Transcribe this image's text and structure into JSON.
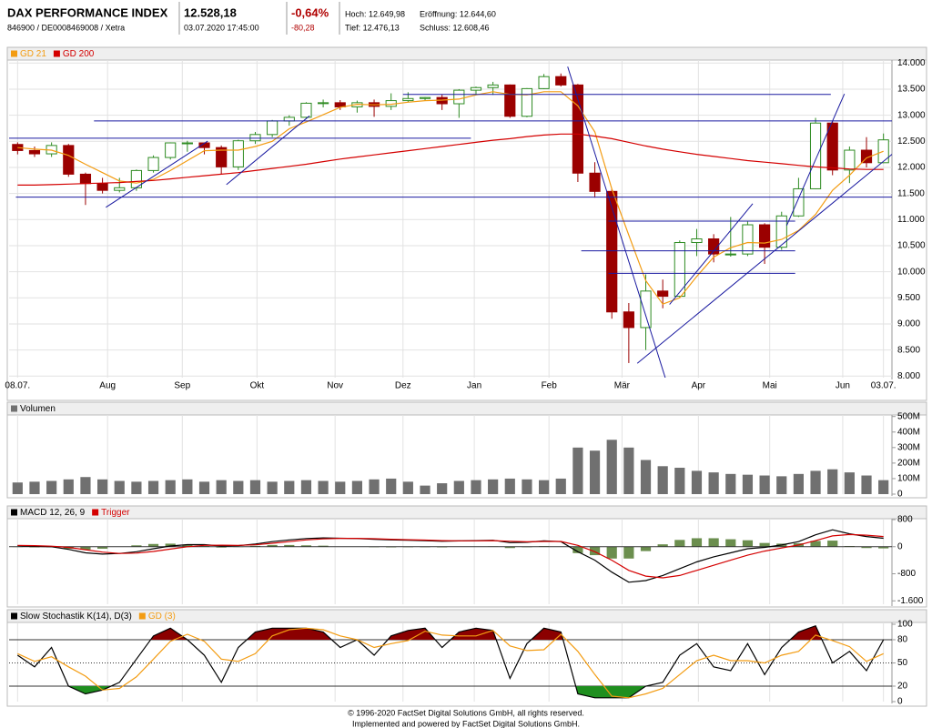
{
  "header": {
    "title": "DAX PERFORMANCE INDEX",
    "subtitle": "846900 / DE0008469008 / Xetra",
    "price": "12.528,18",
    "timestamp": "03.07.2020 17:45:00",
    "change_pct": "-0,64%",
    "change_abs": "-80,28",
    "high": "Hoch: 12.649,98",
    "open": "Eröffnung: 12.644,60",
    "low": "Tief: 12.476,13",
    "close": "Schluss: 12.608,46"
  },
  "chart_data": [
    {
      "type": "candlestick",
      "open": [
        12440,
        12323,
        12260,
        12420,
        11870,
        11690,
        11560,
        11610,
        11940,
        12190,
        12470,
        12470,
        12380,
        12010,
        12510,
        12630,
        12890,
        12960,
        13230,
        13240,
        13160,
        13240,
        13170,
        13280,
        13320,
        13340,
        13220,
        13480,
        13530,
        13580,
        12980,
        13510,
        13740,
        13580,
        11890,
        11540,
        9230,
        8930,
        9630,
        9530,
        10560,
        10630,
        10340,
        10340,
        10900,
        10470,
        11070,
        11590,
        12850,
        11950,
        12330,
        12090
      ],
      "high": [
        12480,
        12400,
        12480,
        12450,
        11900,
        11800,
        11800,
        11960,
        12230,
        12480,
        12510,
        12480,
        12420,
        12530,
        12680,
        12910,
        13000,
        13250,
        13300,
        13290,
        13280,
        13300,
        13420,
        13440,
        13350,
        13400,
        13500,
        13550,
        13640,
        13590,
        13520,
        13790,
        13800,
        13600,
        12100,
        11580,
        9400,
        9950,
        9850,
        10600,
        10820,
        10720,
        11050,
        10960,
        10930,
        11150,
        11800,
        12950,
        12880,
        12400,
        12580,
        12650
      ],
      "low": [
        12250,
        12200,
        12200,
        11820,
        11280,
        11500,
        11520,
        11550,
        11900,
        12150,
        12300,
        12250,
        11860,
        11950,
        12450,
        12580,
        12800,
        12930,
        13150,
        13100,
        13050,
        12970,
        13100,
        13250,
        13280,
        13100,
        12950,
        13400,
        13390,
        12950,
        12960,
        13500,
        13550,
        11720,
        11420,
        9100,
        8250,
        8500,
        9300,
        9500,
        10300,
        10180,
        10290,
        10300,
        10150,
        10420,
        11050,
        11580,
        11850,
        11700,
        12000,
        12080
      ],
      "close": [
        12323,
        12260,
        12420,
        11870,
        11690,
        11560,
        11610,
        11940,
        12190,
        12470,
        12470,
        12380,
        12010,
        12510,
        12630,
        12890,
        12960,
        13230,
        13240,
        13160,
        13240,
        13170,
        13280,
        13320,
        13340,
        13220,
        13480,
        13530,
        13580,
        12980,
        13510,
        13740,
        13580,
        11890,
        11540,
        9230,
        8930,
        9630,
        9530,
        10560,
        10630,
        10340,
        10340,
        10900,
        10470,
        11070,
        11590,
        12850,
        11950,
        12330,
        12090,
        12528
      ],
      "up_color": "#2e8b22",
      "down_color": "#9b0000",
      "lines": [
        {
          "name": "GD 21",
          "color": "#f39c12",
          "values": [
            12380,
            12350,
            12330,
            12230,
            12060,
            11900,
            11740,
            11700,
            11770,
            11940,
            12130,
            12320,
            12330,
            12330,
            12400,
            12500,
            12740,
            12870,
            13010,
            13150,
            13210,
            13200,
            13210,
            13250,
            13280,
            13290,
            13310,
            13390,
            13450,
            13400,
            13390,
            13450,
            13450,
            13180,
            12680,
            11590,
            10700,
            9830,
            9380,
            9500,
            9910,
            10280,
            10460,
            10560,
            10550,
            10620,
            10790,
            11100,
            11560,
            11850,
            12180,
            12310
          ]
        },
        {
          "name": "GD 200",
          "color": "#d40000",
          "values": [
            11660,
            11660,
            11670,
            11680,
            11690,
            11700,
            11710,
            11730,
            11750,
            11780,
            11810,
            11840,
            11870,
            11900,
            11940,
            11980,
            12020,
            12060,
            12110,
            12160,
            12200,
            12240,
            12280,
            12320,
            12360,
            12400,
            12440,
            12480,
            12520,
            12550,
            12590,
            12620,
            12640,
            12640,
            12600,
            12550,
            12480,
            12410,
            12350,
            12300,
            12250,
            12210,
            12170,
            12130,
            12100,
            12070,
            12040,
            12010,
            11990,
            11970,
            11960,
            11960
          ]
        }
      ],
      "trendline_color": "#1a1aa0",
      "trendlines": [
        {
          "x": [
            22.7,
            47.9
          ],
          "y": [
            13400,
            13400
          ]
        },
        {
          "x": [
            4.5,
            51.8
          ],
          "y": [
            12890,
            12890
          ]
        },
        {
          "x": [
            -0.5,
            26.7
          ],
          "y": [
            12560,
            12560
          ]
        },
        {
          "x": [
            -0.1,
            51.5
          ],
          "y": [
            11430,
            11430
          ]
        },
        {
          "x": [
            34.8,
            45.8
          ],
          "y": [
            10970,
            10970
          ]
        },
        {
          "x": [
            33.2,
            45.8
          ],
          "y": [
            10400,
            10400
          ]
        },
        {
          "x": [
            34.8,
            45.8
          ],
          "y": [
            9970,
            9970
          ]
        },
        {
          "x": [
            5.2,
            11.2
          ],
          "y": [
            11235,
            12504
          ]
        },
        {
          "x": [
            12.3,
            17.2
          ],
          "y": [
            11670,
            12990
          ]
        },
        {
          "x": [
            32.4,
            38.3
          ],
          "y": [
            13930,
            7810
          ]
        },
        {
          "x": [
            36.5,
            51.8
          ],
          "y": [
            8244,
            12330
          ]
        },
        {
          "x": [
            38.4,
            43.3
          ],
          "y": [
            9374,
            11304
          ]
        },
        {
          "x": [
            45.3,
            48.7
          ],
          "y": [
            10887,
            13409
          ]
        }
      ],
      "xlim": [
        -0.5,
        51.5
      ],
      "ylim": [
        7970,
        14040
      ],
      "xticks": [
        {
          "value": 0,
          "label": "08.07."
        },
        {
          "value": 5.3,
          "label": "Aug"
        },
        {
          "value": 9.7,
          "label": "Sep"
        },
        {
          "value": 14.1,
          "label": "Okt"
        },
        {
          "value": 18.7,
          "label": "Nov"
        },
        {
          "value": 22.7,
          "label": "Dez"
        },
        {
          "value": 26.9,
          "label": "Jan"
        },
        {
          "value": 31.3,
          "label": "Feb"
        },
        {
          "value": 35.6,
          "label": "Mär"
        },
        {
          "value": 40.1,
          "label": "Apr"
        },
        {
          "value": 44.3,
          "label": "Mai"
        },
        {
          "value": 48.6,
          "label": "Jun"
        },
        {
          "value": 51,
          "label": "03.07."
        }
      ],
      "yticks": [
        {
          "value": 8000,
          "label": "8.000"
        },
        {
          "value": 8500,
          "label": "8.500"
        },
        {
          "value": 9000,
          "label": "9.000"
        },
        {
          "value": 9500,
          "label": "9.500"
        },
        {
          "value": 10000,
          "label": "10.000"
        },
        {
          "value": 10500,
          "label": "10.500"
        },
        {
          "value": 11000,
          "label": "11.000"
        },
        {
          "value": 11500,
          "label": "11.500"
        },
        {
          "value": 12000,
          "label": "12.000"
        },
        {
          "value": 12500,
          "label": "12.500"
        },
        {
          "value": 13000,
          "label": "13.000"
        },
        {
          "value": 13500,
          "label": "13.500"
        },
        {
          "value": 14000,
          "label": "14.000"
        }
      ],
      "grid": true
    },
    {
      "type": "bar",
      "series": [
        {
          "name": "Volumen",
          "color": "#707070",
          "values": [
            75,
            80,
            85,
            95,
            110,
            95,
            85,
            80,
            85,
            90,
            95,
            80,
            90,
            85,
            90,
            80,
            85,
            90,
            85,
            80,
            85,
            95,
            100,
            80,
            55,
            70,
            85,
            90,
            95,
            100,
            95,
            90,
            100,
            300,
            280,
            350,
            300,
            220,
            180,
            170,
            150,
            140,
            130,
            125,
            120,
            115,
            130,
            150,
            160,
            140,
            120,
            90
          ]
        }
      ],
      "xlim": [
        -0.5,
        51.5
      ],
      "ylim": [
        0,
        510
      ],
      "yticks": [
        0,
        {
          "value": 100,
          "label": "100M"
        },
        {
          "value": 200,
          "label": "200M"
        },
        {
          "value": 300,
          "label": "300M"
        },
        {
          "value": 400,
          "label": "400M"
        },
        {
          "value": 500,
          "label": "500M"
        }
      ],
      "grid": true
    },
    {
      "type": "line",
      "series": [
        {
          "name": "MACD 12, 26, 9",
          "color": "#000000",
          "values": [
            30,
            10,
            0,
            -80,
            -180,
            -220,
            -200,
            -150,
            -60,
            20,
            60,
            60,
            20,
            30,
            80,
            150,
            200,
            240,
            260,
            250,
            240,
            220,
            200,
            190,
            180,
            160,
            170,
            180,
            190,
            120,
            130,
            170,
            150,
            -150,
            -400,
            -750,
            -1050,
            -1000,
            -850,
            -650,
            -450,
            -300,
            -180,
            -60,
            -20,
            50,
            150,
            350,
            500,
            380,
            300,
            250
          ]
        },
        {
          "name": "Trigger",
          "color": "#d40000",
          "values": [
            40,
            30,
            15,
            -20,
            -90,
            -160,
            -200,
            -190,
            -140,
            -70,
            0,
            40,
            45,
            40,
            55,
            100,
            150,
            200,
            230,
            245,
            245,
            235,
            220,
            205,
            195,
            180,
            175,
            175,
            180,
            160,
            145,
            155,
            155,
            40,
            -150,
            -400,
            -700,
            -870,
            -920,
            -850,
            -700,
            -550,
            -400,
            -250,
            -130,
            -40,
            50,
            180,
            320,
            360,
            340,
            300
          ]
        },
        {
          "color": "#6b8e4e",
          "style": "bar",
          "values": [
            -10,
            -20,
            -15,
            -60,
            -90,
            -60,
            0,
            40,
            80,
            90,
            60,
            20,
            -25,
            -10,
            25,
            50,
            50,
            40,
            30,
            5,
            -5,
            -15,
            -20,
            -15,
            -15,
            -20,
            -5,
            5,
            10,
            -40,
            -15,
            15,
            -5,
            -190,
            -250,
            -350,
            -350,
            -130,
            70,
            200,
            250,
            250,
            220,
            190,
            110,
            90,
            100,
            170,
            180,
            20,
            -40,
            -50
          ]
        }
      ],
      "xlim": [
        -0.5,
        51.5
      ],
      "ylim": [
        -1700,
        800
      ],
      "yticks": [
        {
          "value": -1600,
          "label": "-1.600"
        },
        -800,
        0,
        800
      ],
      "grid": true
    },
    {
      "type": "line",
      "series": [
        {
          "name": "Slow Stochastik K(14), D(3)",
          "color": "#000000",
          "values": [
            60,
            45,
            70,
            20,
            10,
            15,
            25,
            55,
            85,
            95,
            80,
            60,
            25,
            70,
            90,
            95,
            95,
            95,
            90,
            70,
            80,
            60,
            85,
            92,
            95,
            70,
            90,
            95,
            92,
            30,
            75,
            95,
            90,
            10,
            5,
            5,
            5,
            20,
            25,
            60,
            75,
            45,
            40,
            75,
            35,
            70,
            90,
            98,
            50,
            65,
            40,
            80
          ]
        },
        {
          "name": "GD (3)",
          "color": "#f39c12",
          "values": [
            62,
            52,
            58,
            45,
            33,
            15,
            17,
            32,
            55,
            78,
            87,
            78,
            55,
            52,
            62,
            85,
            93,
            95,
            93,
            85,
            80,
            70,
            75,
            79,
            91,
            86,
            85,
            85,
            92,
            72,
            66,
            67,
            87,
            65,
            35,
            7,
            5,
            10,
            17,
            35,
            53,
            60,
            53,
            53,
            50,
            60,
            65,
            86,
            79,
            71,
            52,
            62
          ]
        }
      ],
      "overbought_color": "#8b0000",
      "oversold_color": "#1f8f1f",
      "reference_lines": [
        {
          "value": 20
        },
        {
          "value": 50,
          "style": "dotted"
        },
        {
          "value": 80
        }
      ],
      "xlim": [
        -0.5,
        51.5
      ],
      "ylim": [
        0,
        100
      ],
      "yticks": [
        0,
        20,
        50,
        80,
        100
      ],
      "grid": true
    }
  ],
  "footer": {
    "line1": "© 1996-2020 FactSet Digital Solutions GmbH, all rights reserved.",
    "line2": "Implemented and powered by FactSet Digital Solutions GmbH."
  }
}
